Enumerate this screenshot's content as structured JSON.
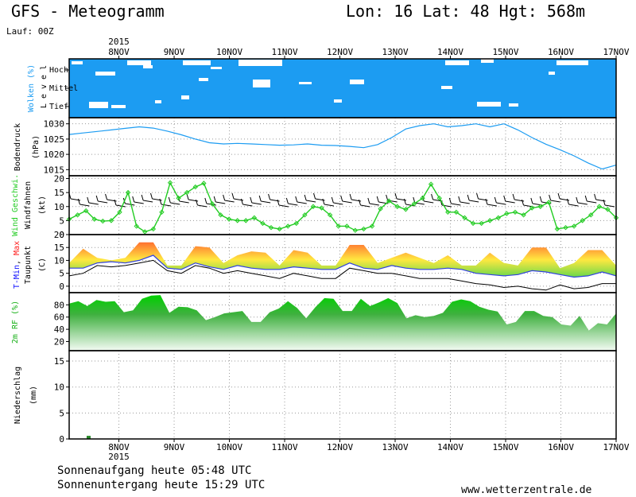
{
  "header": {
    "title": "GFS - Meteogramm",
    "coords": "Lon: 16  Lat: 48  Hgt: 568m",
    "run": "Lauf: 00Z"
  },
  "footer": {
    "sunrise": "Sonnenaufgang heute 05:48 UTC",
    "sunset": "Sonnenuntergang heute 15:29 UTC",
    "site": "www.wetterzentrale.de"
  },
  "colors": {
    "cloud_blue": "#1c9cf2",
    "pressure": "#1c9cf2",
    "wind": "#22cc22",
    "rh": "#18b018",
    "temp_max_fill": "#ffe840",
    "temp_hot": "#ff7030",
    "dew": "#000000",
    "precip": "#2a8a2a"
  },
  "chart_data": [
    {
      "type": "heatmap",
      "name": "clouds",
      "ylabel": "Wolken (%)",
      "level_label": "L e v e l",
      "levels": [
        "Hoch",
        "Mittel",
        "Tief"
      ],
      "x_days": [
        "8NOV",
        "9NOV",
        "10NOV",
        "11NOV",
        "12NOV",
        "13NOV",
        "14NOV",
        "15NOV",
        "16NOV",
        "17NOV"
      ],
      "year": "2015"
    },
    {
      "type": "line",
      "name": "pressure",
      "ylabel": "Bodendruck",
      "unit": "(hPa)",
      "ylim": [
        1013,
        1032
      ],
      "yticks": [
        1015,
        1020,
        1025,
        1030
      ],
      "x_hours": [
        0,
        6,
        12,
        18,
        24,
        30,
        36,
        42,
        48,
        54,
        60,
        66,
        72,
        78,
        84,
        90,
        96,
        102,
        108,
        114,
        120,
        126,
        132,
        138,
        144,
        150,
        156,
        162,
        168,
        174,
        180,
        186,
        192,
        198,
        204,
        210,
        216,
        222,
        228,
        234
      ],
      "series": [
        {
          "values": [
            1026.5,
            1027,
            1027.5,
            1028,
            1028.5,
            1029,
            1028.6,
            1027.6,
            1026.4,
            1025,
            1023.8,
            1023.4,
            1023.6,
            1023.4,
            1023.2,
            1023,
            1023.1,
            1023.4,
            1023,
            1022.9,
            1022.6,
            1022.2,
            1023.2,
            1025.5,
            1028.3,
            1029.4,
            1030,
            1029,
            1029.4,
            1030,
            1029,
            1030,
            1028,
            1025.5,
            1023.3,
            1021.5,
            1019.5,
            1017.2,
            1015.2,
            1016.5
          ]
        }
      ]
    },
    {
      "type": "line",
      "name": "wind",
      "ylabel": "Wind Geschwi.",
      "ylabel2": "Windfahnen",
      "unit": "(kt)",
      "ylim": [
        0,
        21
      ],
      "yticks": [
        0,
        5,
        10,
        15,
        20
      ],
      "series": [
        {
          "values": [
            5.5,
            7,
            8.5,
            5.5,
            4.8,
            5,
            8,
            15,
            3,
            1,
            2,
            8,
            18.5,
            13,
            15,
            17,
            18.3,
            11,
            7,
            5.5,
            5,
            5,
            6,
            4,
            2.5,
            2,
            3,
            4,
            7,
            10,
            9.5,
            7,
            3,
            3,
            1.5,
            2,
            3,
            9.2,
            12,
            10,
            9,
            11,
            13,
            18,
            13,
            8,
            8,
            6,
            4,
            4,
            5,
            6,
            7.5,
            8,
            7,
            9.5,
            10,
            11.5,
            2,
            2.5,
            3,
            5,
            7,
            10,
            9,
            6
          ]
        }
      ]
    },
    {
      "type": "area",
      "name": "temperature",
      "ylabel_parts": [
        "T-Min",
        ", ",
        "Max"
      ],
      "ylabel2": "Taupunkt",
      "unit": "(C)",
      "ylim": [
        -2.5,
        20
      ],
      "yticks": [
        0,
        5,
        10,
        15,
        20
      ],
      "series": [
        {
          "name": "T-Max",
          "values": [
            9,
            14.5,
            11,
            10,
            11,
            17,
            17,
            8,
            8,
            15.5,
            15,
            9,
            12,
            13.5,
            13,
            8,
            14,
            13,
            8,
            8,
            16,
            16,
            9,
            11,
            13,
            11,
            9,
            12,
            8,
            8,
            13,
            9,
            8,
            15,
            15,
            7,
            9,
            14,
            14,
            8
          ]
        },
        {
          "name": "T-Min",
          "values": [
            7,
            7,
            9,
            9.5,
            9,
            10,
            12,
            7,
            6.5,
            9,
            7.5,
            6.5,
            8,
            7,
            6.5,
            6.5,
            7.5,
            7,
            6.5,
            6.5,
            9,
            7,
            6.5,
            8,
            7,
            6.5,
            6.5,
            7,
            6.5,
            5,
            4.5,
            4,
            4.5,
            6,
            5.5,
            4.5,
            3.5,
            4,
            5.5,
            4
          ]
        },
        {
          "name": "Taupunkt",
          "values": [
            4,
            5,
            8,
            7.5,
            8,
            9,
            10,
            6,
            5,
            8,
            7,
            5,
            6,
            5,
            4,
            3,
            5,
            4,
            3,
            3,
            7,
            6,
            5,
            5,
            4,
            3,
            3,
            3,
            2,
            1,
            0.5,
            -0.5,
            0,
            -1,
            -1.5,
            0.5,
            -1,
            -0.5,
            1,
            1
          ]
        }
      ]
    },
    {
      "type": "area",
      "name": "humidity",
      "ylabel": "2m RF (%)",
      "ylim": [
        5,
        100
      ],
      "yticks": [
        20,
        40,
        60,
        80
      ],
      "series": [
        {
          "values": [
            82,
            86,
            78,
            88,
            85,
            86,
            68,
            71,
            90,
            95,
            96,
            67,
            77,
            76,
            71,
            55,
            60,
            66,
            68,
            70,
            52,
            52,
            68,
            74,
            86,
            75,
            58,
            76,
            91,
            90,
            70,
            70,
            90,
            78,
            84,
            91,
            83,
            58,
            63,
            60,
            62,
            67,
            85,
            89,
            86,
            77,
            72,
            69,
            48,
            52,
            70,
            70,
            62,
            60,
            48,
            46,
            62,
            38,
            50,
            48,
            66
          ]
        }
      ]
    },
    {
      "type": "bar",
      "name": "precipitation",
      "ylabel": "Niederschlag",
      "unit": "(mm)",
      "ylim": [
        0,
        17
      ],
      "yticks": [
        0,
        5,
        10,
        15
      ],
      "bars": [
        {
          "x_hour": 17,
          "value": 0.6
        }
      ]
    }
  ]
}
